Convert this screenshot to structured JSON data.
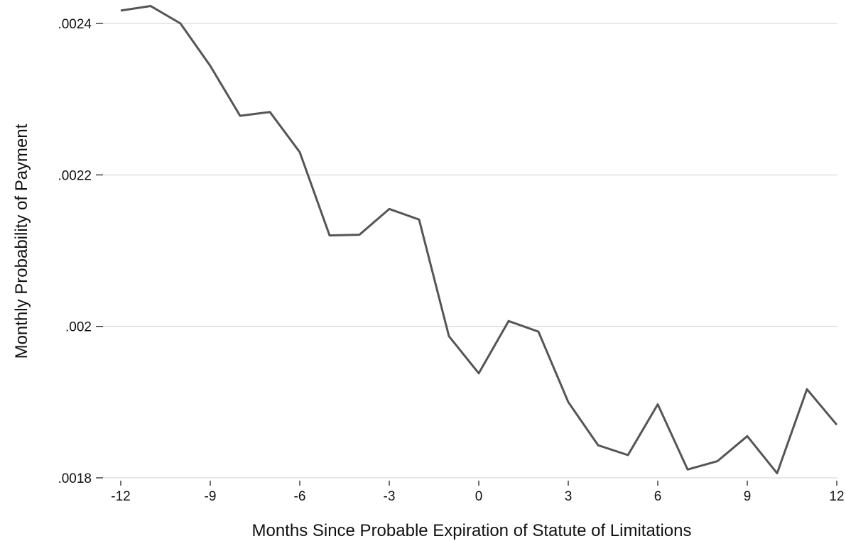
{
  "chart_data": {
    "type": "line",
    "title": "",
    "xlabel": "Months Since Probable Expiration of Statute of Limitations",
    "ylabel": "Monthly Probability of Payment",
    "xlim": [
      -12,
      12
    ],
    "ylim": [
      0.0018,
      0.0024
    ],
    "x_ticks": [
      -12,
      -9,
      -6,
      -3,
      0,
      3,
      6,
      9,
      12
    ],
    "x_tick_labels": [
      "-12",
      "-9",
      "-6",
      "-3",
      "0",
      "3",
      "6",
      "9",
      "12"
    ],
    "y_ticks": [
      0.0018,
      0.002,
      0.0022,
      0.0024
    ],
    "y_tick_labels": [
      ".0018",
      ".002",
      ".0022",
      ".0024"
    ],
    "grid": true,
    "legend": "none",
    "line_color": "#555555",
    "grid_color": "#d0d0d0",
    "x": [
      -12,
      -11,
      -10,
      -9,
      -8,
      -7,
      -6,
      -5,
      -4,
      -3,
      -2,
      -1,
      0,
      1,
      2,
      3,
      4,
      5,
      6,
      7,
      8,
      9,
      10,
      11,
      12
    ],
    "values": [
      0.002417,
      0.002423,
      0.0024,
      0.002344,
      0.002278,
      0.002283,
      0.00223,
      0.00212,
      0.002121,
      0.002155,
      0.002141,
      0.001987,
      0.001938,
      0.002007,
      0.001993,
      0.0019,
      0.001843,
      0.00183,
      0.001897,
      0.001811,
      0.001822,
      0.001855,
      0.001806,
      0.001917,
      0.00187
    ]
  }
}
